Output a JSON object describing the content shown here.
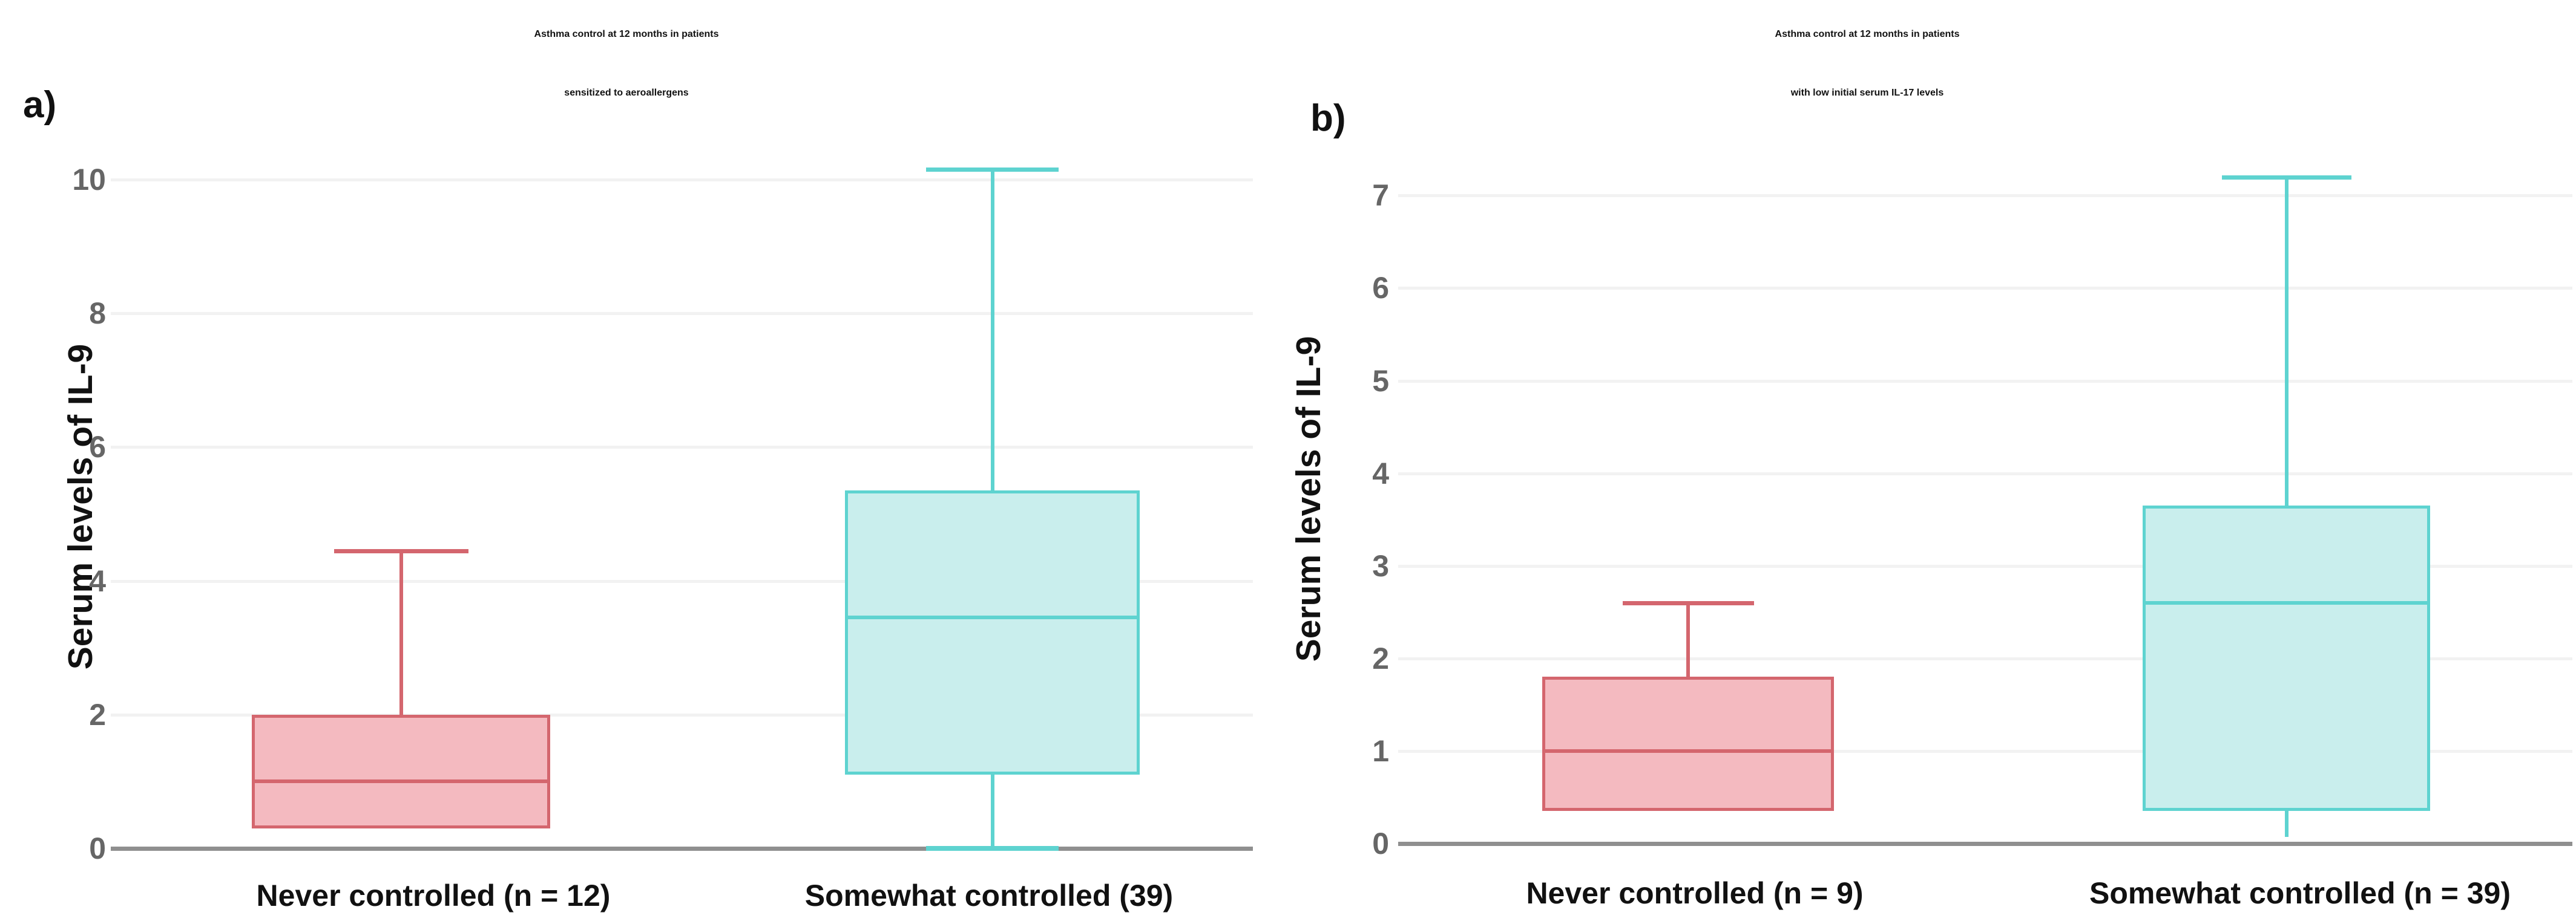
{
  "palette": {
    "red_line": "#d4666e",
    "red_fill": "#f4bac0",
    "teal_line": "#5ed3d0",
    "teal_fill": "#c9eeed",
    "gridline": "#f2f2f2",
    "axis": "#8f8f8f",
    "tick_text": "#666666",
    "text": "#111111"
  },
  "figure": {
    "panels": [
      {
        "corner_label": "a)",
        "title_lines": [
          "Asthma control at 12 months in patients",
          "sensitized to aeroallergens"
        ],
        "y_axis_title": "Serum levels of IL-9",
        "x_categories": [
          "Never controlled (n = 12)",
          "Somewhat controlled (39)"
        ]
      },
      {
        "corner_label": "b)",
        "title_lines": [
          "Asthma control at 12 months in patients",
          "with low initial serum IL-17 levels"
        ],
        "y_axis_title": "Serum levels of IL-9",
        "x_categories": [
          "Never controlled (n = 9)",
          "Somewhat controlled (n = 39)"
        ]
      }
    ]
  },
  "chart_data": [
    {
      "type": "box",
      "title": "Asthma control at 12 months in patients sensitized to aeroallergens",
      "xlabel": "",
      "ylabel": "Serum levels of IL-9",
      "ylim": [
        0,
        10.4
      ],
      "yticks": [
        0,
        2,
        4,
        6,
        8,
        10
      ],
      "grid": true,
      "categories": [
        "Never controlled (n = 12)",
        "Somewhat controlled (39)"
      ],
      "series": [
        {
          "name": "Never controlled (n = 12)",
          "color": "red",
          "min": 0.3,
          "q1": 0.3,
          "median": 1.0,
          "q3": 2.0,
          "max": 4.45,
          "lower_whisker": null
        },
        {
          "name": "Somewhat controlled (39)",
          "color": "teal",
          "min": 0.0,
          "q1": 1.1,
          "median": 3.45,
          "q3": 5.35,
          "max": 10.15,
          "lower_whisker": {
            "value": 0.0,
            "cap": true
          }
        }
      ]
    },
    {
      "type": "box",
      "title": "Asthma control at 12 months in patients with low initial serum IL-17 levels",
      "xlabel": "",
      "ylabel": "Serum levels of IL-9",
      "ylim": [
        0,
        7.4
      ],
      "yticks": [
        0,
        1,
        2,
        3,
        4,
        5,
        6,
        7
      ],
      "grid": true,
      "categories": [
        "Never controlled (n = 9)",
        "Somewhat controlled (n = 39)"
      ],
      "series": [
        {
          "name": "Never controlled (n = 9)",
          "color": "red",
          "min": 0.35,
          "q1": 0.35,
          "median": 1.0,
          "q3": 1.8,
          "max": 2.6,
          "lower_whisker": null
        },
        {
          "name": "Somewhat controlled (n = 39)",
          "color": "teal",
          "min": 0.07,
          "q1": 0.35,
          "median": 2.6,
          "q3": 3.65,
          "max": 7.2,
          "lower_whisker": {
            "value": 0.07,
            "cap": false
          }
        }
      ]
    }
  ]
}
